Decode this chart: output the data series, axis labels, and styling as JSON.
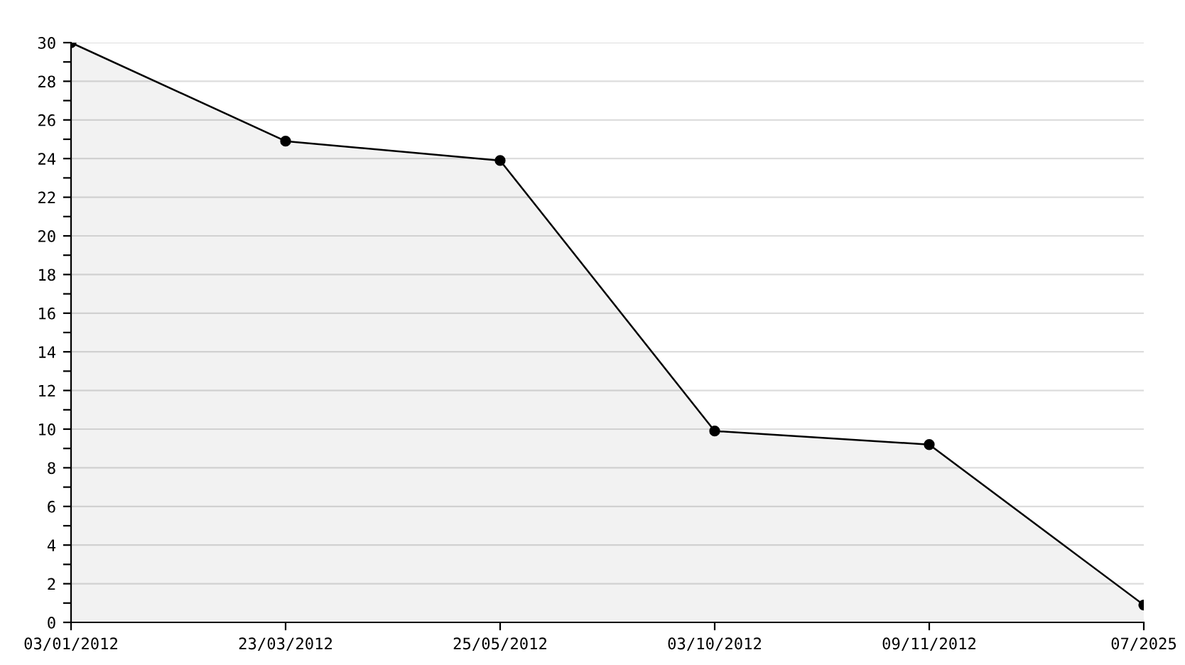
{
  "chart_data": {
    "type": "area",
    "categories": [
      "03/01/2012",
      "23/03/2012",
      "25/05/2012",
      "03/10/2012",
      "09/11/2012",
      "07/2025"
    ],
    "series": [
      {
        "color": "#000000",
        "values": [
          30,
          24.9,
          23.9,
          9.9,
          9.2,
          0.9
        ]
      }
    ],
    "ylim": [
      0,
      30
    ],
    "yticks": [
      0,
      {
        "value": 1,
        "label": null
      },
      2,
      {
        "value": 3,
        "label": null
      },
      4,
      {
        "value": 5,
        "label": null
      },
      6,
      {
        "value": 7,
        "label": null
      },
      8,
      {
        "value": 9,
        "label": null
      },
      10,
      {
        "value": 11,
        "label": null
      },
      12,
      {
        "value": 13,
        "label": null
      },
      14,
      {
        "value": 15,
        "label": null
      },
      16,
      {
        "value": 17,
        "label": null
      },
      18,
      {
        "value": 19,
        "label": null
      },
      20,
      {
        "value": 21,
        "label": null
      },
      22,
      {
        "value": 23,
        "label": null
      },
      24,
      {
        "value": 25,
        "label": null
      },
      26,
      {
        "value": 27,
        "label": null
      },
      28,
      {
        "value": 29,
        "label": null
      },
      30
    ],
    "grid": "y",
    "marker": "circle",
    "line_style": "solid",
    "legend": false
  }
}
